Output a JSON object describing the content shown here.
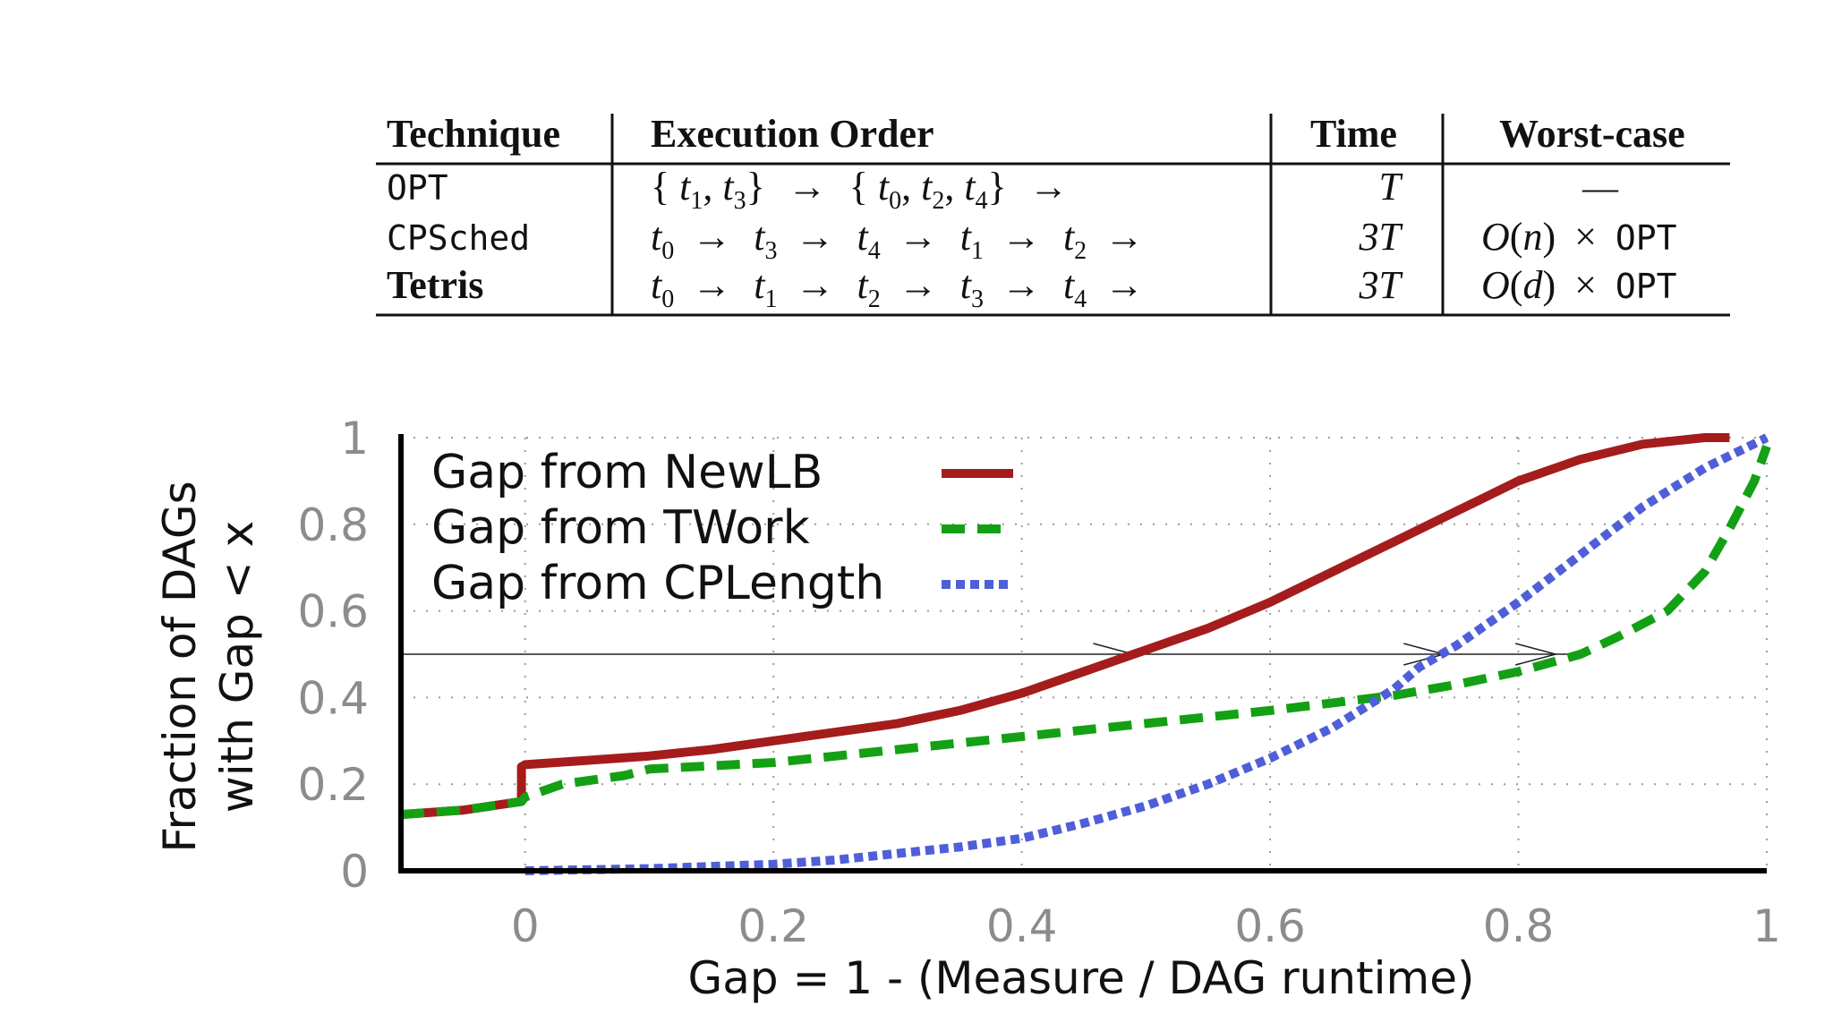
{
  "table": {
    "headers": [
      "Technique",
      "Execution Order",
      "Time",
      "Worst-case"
    ],
    "rows": [
      {
        "technique": "OPT",
        "order": [
          [
            "{",
            "t",
            "1",
            ",",
            "t",
            "3",
            "}"
          ],
          "→",
          [
            "{",
            "t",
            "0",
            ",",
            "t",
            "2",
            ",",
            "t",
            "4",
            "}"
          ],
          "→"
        ],
        "time": "T",
        "worst": "—"
      },
      {
        "technique": "CPSched",
        "order_steps": [
          "0",
          "3",
          "4",
          "1",
          "2"
        ],
        "time": "3T",
        "worst_bound": "n",
        "worst_suffix": "OPT"
      },
      {
        "technique": "Tetris",
        "order_steps": [
          "0",
          "1",
          "2",
          "3",
          "4"
        ],
        "time": "3T",
        "worst_bound": "d",
        "worst_suffix": "OPT"
      }
    ]
  },
  "chart_data": {
    "type": "line",
    "title": "",
    "xlabel": "Gap = 1 - (Measure / DAG runtime)",
    "ylabel_line1": "Fraction of DAGs",
    "ylabel_line2": "with Gap < x",
    "xlim": [
      -0.1,
      1.0
    ],
    "ylim": [
      0,
      1
    ],
    "xticks": [
      0,
      0.2,
      0.4,
      0.6,
      0.8,
      1
    ],
    "xtick_labels": [
      "0",
      "0.2",
      "0.4",
      "0.6",
      "0.8",
      "1"
    ],
    "yticks": [
      0,
      0.2,
      0.4,
      0.6,
      0.8,
      1
    ],
    "ytick_labels": [
      "0",
      "0.2",
      "0.4",
      "0.6",
      "0.8",
      "1"
    ],
    "grid": true,
    "legend_position": "top-left",
    "reference_line_y": 0.5,
    "series": [
      {
        "name": "Gap from NewLB",
        "color": "#a51c1c",
        "style": "solid",
        "x": [
          -0.1,
          -0.05,
          -0.003,
          -0.003,
          0.0,
          0.05,
          0.1,
          0.15,
          0.2,
          0.25,
          0.3,
          0.35,
          0.4,
          0.45,
          0.5,
          0.55,
          0.6,
          0.65,
          0.7,
          0.75,
          0.8,
          0.85,
          0.9,
          0.95,
          0.97
        ],
        "y": [
          0.13,
          0.14,
          0.16,
          0.24,
          0.245,
          0.255,
          0.265,
          0.28,
          0.3,
          0.32,
          0.34,
          0.37,
          0.41,
          0.46,
          0.51,
          0.56,
          0.62,
          0.69,
          0.76,
          0.83,
          0.9,
          0.95,
          0.985,
          1.0,
          1.0
        ]
      },
      {
        "name": "Gap from TWork",
        "color": "#14a014",
        "style": "dashed",
        "x": [
          -0.1,
          -0.05,
          -0.003,
          0.0,
          0.03,
          0.08,
          0.1,
          0.2,
          0.3,
          0.4,
          0.5,
          0.6,
          0.7,
          0.75,
          0.8,
          0.85,
          0.88,
          0.92,
          0.95,
          0.97,
          0.99,
          1.0
        ],
        "y": [
          0.13,
          0.14,
          0.16,
          0.17,
          0.2,
          0.22,
          0.235,
          0.25,
          0.28,
          0.31,
          0.34,
          0.37,
          0.405,
          0.43,
          0.46,
          0.5,
          0.54,
          0.6,
          0.69,
          0.79,
          0.9,
          0.98
        ]
      },
      {
        "name": "Gap from CPLength",
        "color": "#4f5fd8",
        "style": "dotted",
        "x": [
          0.0,
          0.1,
          0.2,
          0.25,
          0.3,
          0.35,
          0.4,
          0.45,
          0.5,
          0.55,
          0.6,
          0.65,
          0.7,
          0.72,
          0.75,
          0.8,
          0.85,
          0.9,
          0.95,
          1.0
        ],
        "y": [
          0.0,
          0.005,
          0.015,
          0.025,
          0.04,
          0.055,
          0.075,
          0.11,
          0.15,
          0.2,
          0.26,
          0.33,
          0.42,
          0.47,
          0.52,
          0.62,
          0.73,
          0.84,
          0.93,
          1.0
        ]
      }
    ]
  }
}
